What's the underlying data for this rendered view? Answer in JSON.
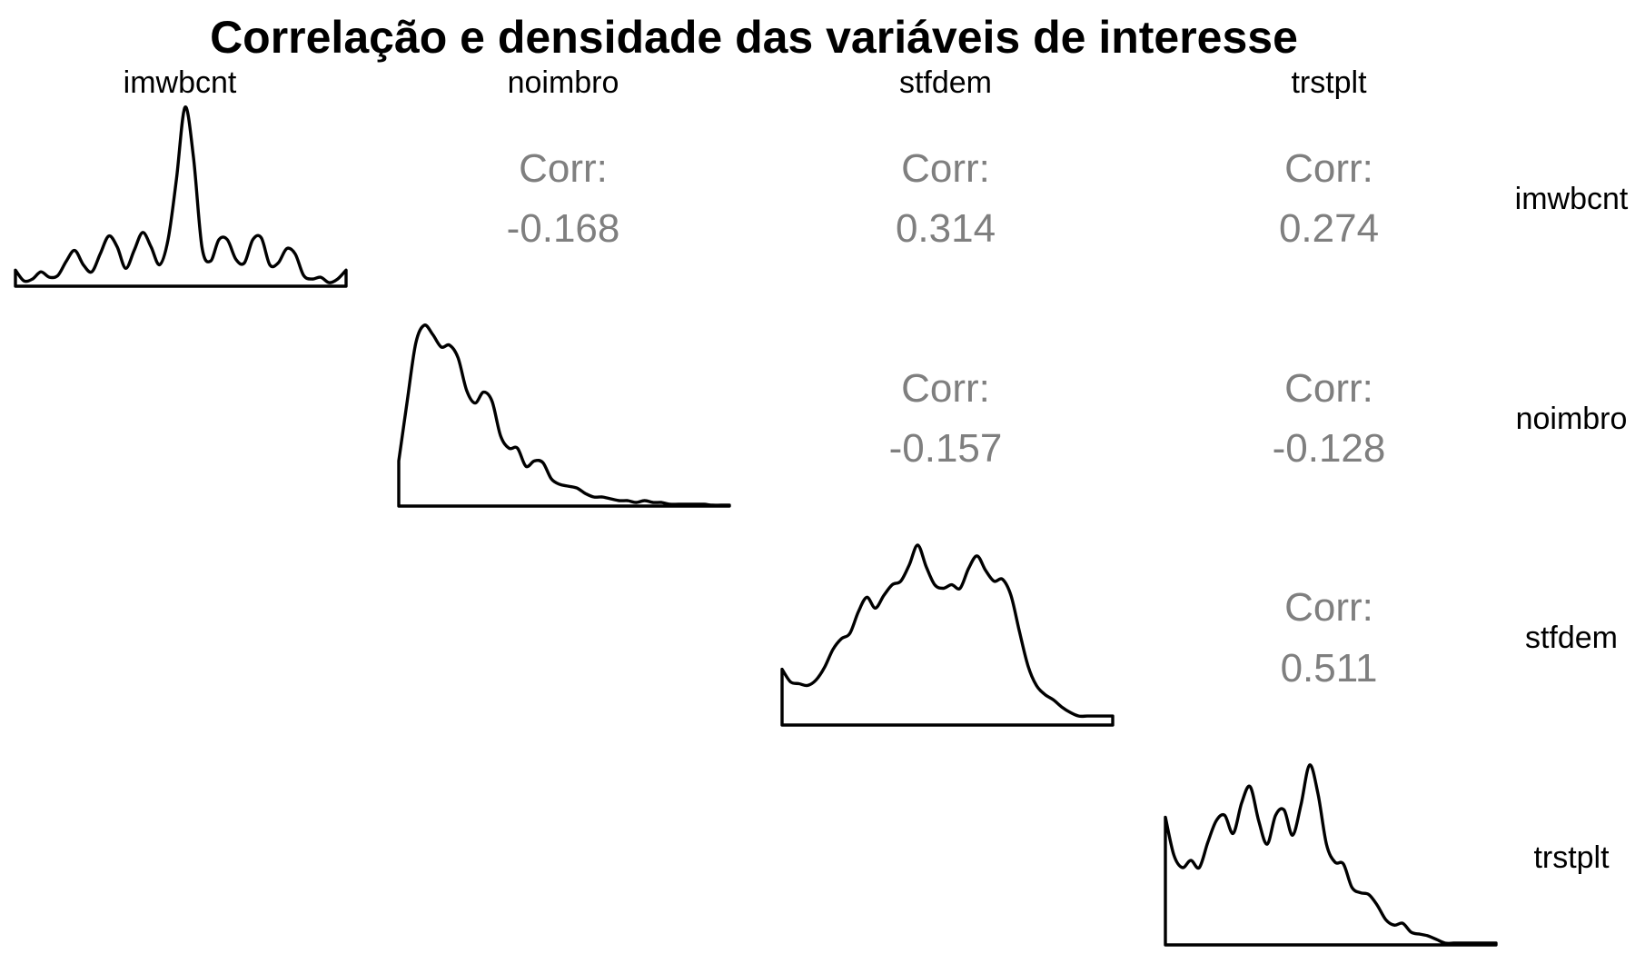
{
  "chart_data": {
    "type": "pairs-matrix",
    "title": "Correlação e densidade das variáveis de interesse",
    "variables": [
      "imwbcnt",
      "noimbro",
      "stfdem",
      "trstplt"
    ],
    "corr_label": "Corr:",
    "correlations": [
      {
        "row": "imwbcnt",
        "col": "noimbro",
        "value": "-0.168"
      },
      {
        "row": "imwbcnt",
        "col": "stfdem",
        "value": "0.314"
      },
      {
        "row": "imwbcnt",
        "col": "trstplt",
        "value": "0.274"
      },
      {
        "row": "noimbro",
        "col": "stfdem",
        "value": "-0.157"
      },
      {
        "row": "noimbro",
        "col": "trstplt",
        "value": "-0.128"
      },
      {
        "row": "stfdem",
        "col": "trstplt",
        "value": "0.511"
      }
    ],
    "densities": {
      "imwbcnt": [
        0.09,
        0.03,
        0.04,
        0.08,
        0.05,
        0.06,
        0.14,
        0.2,
        0.12,
        0.08,
        0.18,
        0.28,
        0.22,
        0.1,
        0.2,
        0.3,
        0.22,
        0.12,
        0.26,
        0.6,
        1.0,
        0.72,
        0.22,
        0.14,
        0.26,
        0.26,
        0.15,
        0.13,
        0.26,
        0.27,
        0.12,
        0.13,
        0.21,
        0.18,
        0.06,
        0.04,
        0.05,
        0.02,
        0.04,
        0.09
      ],
      "noimbro": [
        0.25,
        0.58,
        0.9,
        1.0,
        0.95,
        0.88,
        0.89,
        0.82,
        0.64,
        0.57,
        0.63,
        0.58,
        0.39,
        0.32,
        0.32,
        0.22,
        0.25,
        0.24,
        0.15,
        0.12,
        0.11,
        0.1,
        0.07,
        0.05,
        0.05,
        0.04,
        0.03,
        0.03,
        0.02,
        0.03,
        0.02,
        0.02,
        0.01,
        0.01,
        0.01,
        0.01,
        0.01,
        0.005,
        0.005,
        0.005
      ],
      "stfdem": [
        0.31,
        0.24,
        0.23,
        0.22,
        0.25,
        0.32,
        0.42,
        0.48,
        0.51,
        0.63,
        0.71,
        0.65,
        0.72,
        0.78,
        0.8,
        0.89,
        1.0,
        0.88,
        0.78,
        0.76,
        0.78,
        0.76,
        0.87,
        0.94,
        0.86,
        0.8,
        0.81,
        0.72,
        0.52,
        0.33,
        0.22,
        0.17,
        0.14,
        0.1,
        0.07,
        0.05,
        0.05,
        0.05,
        0.05,
        0.05
      ],
      "trstplt": [
        0.71,
        0.5,
        0.43,
        0.47,
        0.43,
        0.57,
        0.69,
        0.72,
        0.62,
        0.79,
        0.88,
        0.69,
        0.56,
        0.72,
        0.75,
        0.61,
        0.78,
        1.0,
        0.84,
        0.56,
        0.46,
        0.45,
        0.32,
        0.29,
        0.28,
        0.22,
        0.14,
        0.11,
        0.12,
        0.07,
        0.06,
        0.05,
        0.03,
        0.01,
        0.01,
        0.01,
        0.01,
        0.01,
        0.01,
        0.01
      ]
    },
    "grid": false,
    "legend": "none"
  }
}
